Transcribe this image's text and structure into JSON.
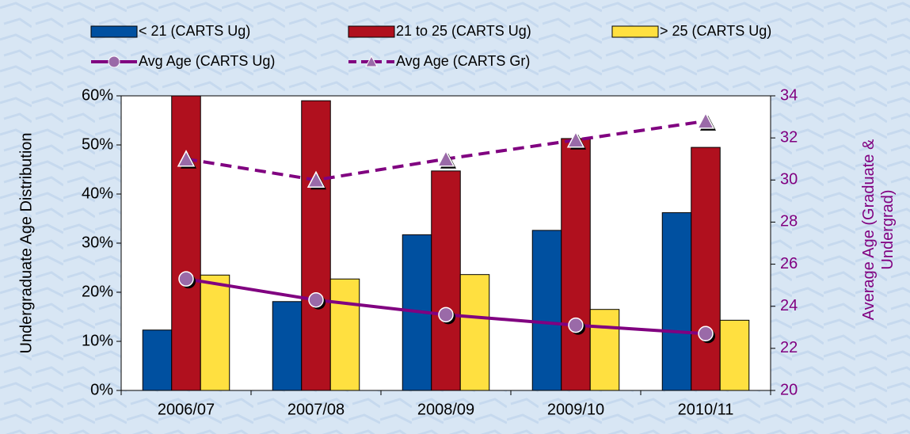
{
  "chart_data": {
    "type": "bar_line",
    "categories": [
      "2006/07",
      "2007/08",
      "2008/09",
      "2009/10",
      "2010/11"
    ],
    "series": [
      {
        "name": "< 21 (CARTS Ug)",
        "color": "#0050a0",
        "type": "bar",
        "values": [
          12.3,
          18.1,
          31.7,
          32.6,
          36.2
        ]
      },
      {
        "name": "21 to 25 (CARTS Ug)",
        "color": "#b0101e",
        "type": "bar",
        "values": [
          60,
          59,
          44.7,
          51.3,
          49.5
        ]
      },
      {
        "name": "> 25 (CARTS Ug)",
        "color": "#ffe040",
        "type": "bar",
        "values": [
          23.5,
          22.7,
          23.6,
          16.5,
          14.3
        ]
      },
      {
        "name": "Avg Age (CARTS Ug)",
        "color": "#800080",
        "type": "line",
        "marker": "circle",
        "axis": "y2",
        "values": [
          25.3,
          24.3,
          23.6,
          23.1,
          22.7
        ]
      },
      {
        "name": "Avg Age (CARTS Gr)",
        "color": "#800080",
        "type": "line",
        "marker": "triangle",
        "dashed": true,
        "axis": "y2",
        "values": [
          31.0,
          30.0,
          31.0,
          31.9,
          32.8
        ]
      }
    ],
    "ylabel": "Undergraduate Age Distribution",
    "y2label": "Average Age (Graduate & Undergrad)",
    "ylim": [
      0,
      60
    ],
    "yticks": [
      {
        "value": 0,
        "label": "0%"
      },
      {
        "value": 10,
        "label": "10%"
      },
      {
        "value": 20,
        "label": "20%"
      },
      {
        "value": 30,
        "label": "30%"
      },
      {
        "value": 40,
        "label": "40%"
      },
      {
        "value": 50,
        "label": "50%"
      },
      {
        "value": 60,
        "label": "60%"
      }
    ],
    "y2lim": [
      20,
      34
    ],
    "y2ticks": [
      20,
      22,
      24,
      26,
      28,
      30,
      32,
      34
    ],
    "grid": false,
    "legend": "top"
  }
}
